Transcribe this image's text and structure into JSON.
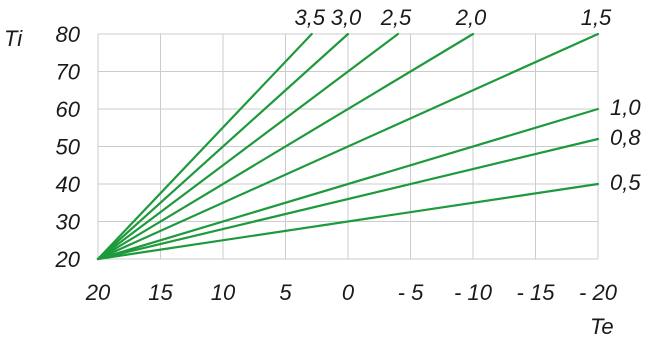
{
  "chart_data": {
    "type": "line",
    "title": "",
    "ylabel": "Ti",
    "xlabel": "Te",
    "x_ticks": [
      "20",
      "15",
      "10",
      "5",
      "0",
      "- 5",
      "- 10",
      "- 15",
      "- 20"
    ],
    "x_tick_values": [
      20,
      15,
      10,
      5,
      0,
      -5,
      -10,
      -15,
      -20
    ],
    "y_ticks": [
      "20",
      "30",
      "40",
      "50",
      "60",
      "70",
      "80"
    ],
    "y_tick_values": [
      20,
      30,
      40,
      50,
      60,
      70,
      80
    ],
    "xlim": [
      20,
      -20
    ],
    "ylim": [
      20,
      80
    ],
    "grid": true,
    "line_color": "#1e9a3c",
    "grid_color": "#cccccc",
    "series": [
      {
        "name": "3,5",
        "points": [
          [
            20,
            20
          ],
          [
            2.9,
            80
          ]
        ]
      },
      {
        "name": "3,0",
        "points": [
          [
            20,
            20
          ],
          [
            0,
            80
          ]
        ]
      },
      {
        "name": "2,5",
        "points": [
          [
            20,
            20
          ],
          [
            -4,
            80
          ]
        ]
      },
      {
        "name": "2,0",
        "points": [
          [
            20,
            20
          ],
          [
            -10,
            80
          ]
        ]
      },
      {
        "name": "1,5",
        "points": [
          [
            20,
            20
          ],
          [
            -20,
            80
          ]
        ]
      },
      {
        "name": "1,0",
        "points": [
          [
            20,
            20
          ],
          [
            -20,
            60
          ]
        ]
      },
      {
        "name": "0,8",
        "points": [
          [
            20,
            20
          ],
          [
            -20,
            52
          ]
        ]
      },
      {
        "name": "0,5",
        "points": [
          [
            20,
            20
          ],
          [
            -20,
            40
          ]
        ]
      }
    ]
  }
}
